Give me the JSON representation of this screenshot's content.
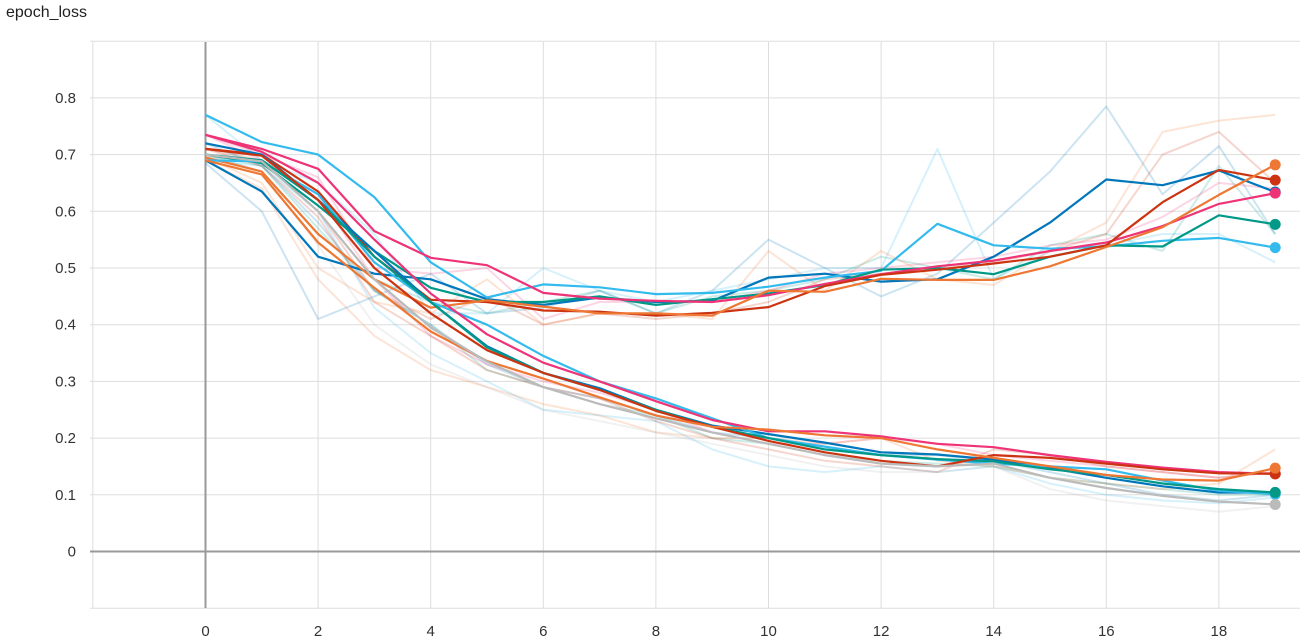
{
  "chart_data": {
    "type": "line",
    "title": "epoch_loss",
    "xlabel": "",
    "ylabel": "",
    "xlim": [
      -2,
      19.5
    ],
    "ylim": [
      -0.1,
      0.9
    ],
    "x_ticks": [
      0,
      2,
      4,
      6,
      8,
      10,
      12,
      14,
      16,
      18
    ],
    "y_ticks": [
      0,
      0.1,
      0.2,
      0.3,
      0.4,
      0.5,
      0.6,
      0.7,
      0.8
    ],
    "grid": true,
    "legend": "none",
    "x": [
      0,
      1,
      2,
      3,
      4,
      5,
      6,
      7,
      8,
      9,
      10,
      11,
      12,
      13,
      14,
      15,
      16,
      17,
      18,
      19
    ],
    "series": [
      {
        "color": "#0077bb",
        "values": [
          0.69,
          0.635,
          0.52,
          0.49,
          0.48,
          0.445,
          0.435,
          0.448,
          0.44,
          0.442,
          0.483,
          0.49,
          0.476,
          0.48,
          0.52,
          0.58,
          0.656,
          0.646,
          0.672,
          0.634
        ],
        "raw": [
          0.685,
          0.6,
          0.41,
          0.45,
          0.49,
          0.42,
          0.43,
          0.46,
          0.42,
          0.46,
          0.55,
          0.5,
          0.45,
          0.49,
          0.58,
          0.67,
          0.785,
          0.63,
          0.715,
          0.56
        ]
      },
      {
        "color": "#33bbee",
        "values": [
          0.77,
          0.722,
          0.7,
          0.625,
          0.51,
          0.448,
          0.471,
          0.466,
          0.454,
          0.456,
          0.467,
          0.483,
          0.495,
          0.578,
          0.54,
          0.534,
          0.538,
          0.548,
          0.553,
          0.536
        ],
        "raw": [
          0.77,
          0.69,
          0.65,
          0.56,
          0.42,
          0.42,
          0.5,
          0.46,
          0.44,
          0.46,
          0.48,
          0.5,
          0.5,
          0.71,
          0.48,
          0.53,
          0.54,
          0.56,
          0.56,
          0.51
        ]
      },
      {
        "color": "#009988",
        "values": [
          0.7,
          0.685,
          0.61,
          0.53,
          0.465,
          0.44,
          0.44,
          0.45,
          0.435,
          0.445,
          0.455,
          0.47,
          0.497,
          0.5,
          0.489,
          0.52,
          0.54,
          0.538,
          0.593,
          0.577
        ],
        "raw": [
          0.7,
          0.67,
          0.56,
          0.48,
          0.44,
          0.42,
          0.44,
          0.46,
          0.42,
          0.45,
          0.46,
          0.48,
          0.52,
          0.5,
          0.48,
          0.54,
          0.56,
          0.53,
          0.68,
          0.56
        ]
      },
      {
        "color": "#ee3377",
        "values": [
          0.735,
          0.71,
          0.675,
          0.565,
          0.518,
          0.505,
          0.456,
          0.446,
          0.442,
          0.44,
          0.452,
          0.472,
          0.489,
          0.503,
          0.513,
          0.53,
          0.545,
          0.574,
          0.613,
          0.632
        ],
        "raw": [
          0.735,
          0.7,
          0.66,
          0.5,
          0.49,
          0.5,
          0.41,
          0.44,
          0.44,
          0.44,
          0.46,
          0.49,
          0.5,
          0.51,
          0.52,
          0.54,
          0.55,
          0.59,
          0.65,
          0.64
        ]
      },
      {
        "color": "#cc3311",
        "values": [
          0.71,
          0.7,
          0.635,
          0.52,
          0.444,
          0.44,
          0.425,
          0.423,
          0.416,
          0.421,
          0.431,
          0.468,
          0.488,
          0.497,
          0.508,
          0.52,
          0.54,
          0.616,
          0.673,
          0.655
        ],
        "raw": [
          0.71,
          0.69,
          0.6,
          0.46,
          0.41,
          0.45,
          0.4,
          0.42,
          0.41,
          0.42,
          0.44,
          0.48,
          0.49,
          0.5,
          0.51,
          0.53,
          0.56,
          0.7,
          0.74,
          0.65
        ]
      },
      {
        "color": "#ee7733",
        "values": [
          0.695,
          0.67,
          0.56,
          0.48,
          0.43,
          0.443,
          0.432,
          0.42,
          0.42,
          0.416,
          0.46,
          0.458,
          0.481,
          0.479,
          0.479,
          0.503,
          0.537,
          0.572,
          0.629,
          0.682
        ],
        "raw": [
          0.695,
          0.65,
          0.5,
          0.44,
          0.42,
          0.48,
          0.4,
          0.42,
          0.42,
          0.41,
          0.53,
          0.46,
          0.53,
          0.48,
          0.47,
          0.53,
          0.58,
          0.74,
          0.76,
          0.77
        ]
      },
      {
        "color": "#0077bb",
        "values": [
          0.72,
          0.7,
          0.62,
          0.53,
          0.44,
          0.362,
          0.315,
          0.288,
          0.25,
          0.222,
          0.207,
          0.192,
          0.175,
          0.171,
          0.162,
          0.147,
          0.13,
          0.115,
          0.104,
          0.104
        ],
        "raw": [
          0.72,
          0.68,
          0.58,
          0.46,
          0.4,
          0.33,
          0.29,
          0.27,
          0.24,
          0.21,
          0.2,
          0.18,
          0.17,
          0.17,
          0.16,
          0.14,
          0.12,
          0.1,
          0.09,
          0.1
        ]
      },
      {
        "color": "#33bbee",
        "values": [
          0.69,
          0.688,
          0.63,
          0.51,
          0.44,
          0.4,
          0.345,
          0.3,
          0.27,
          0.235,
          0.2,
          0.185,
          0.17,
          0.162,
          0.155,
          0.15,
          0.145,
          0.125,
          0.107,
          0.101
        ],
        "raw": [
          0.69,
          0.68,
          0.6,
          0.43,
          0.35,
          0.3,
          0.25,
          0.24,
          0.23,
          0.18,
          0.15,
          0.14,
          0.15,
          0.14,
          0.15,
          0.12,
          0.1,
          0.09,
          0.085,
          0.095
        ]
      },
      {
        "color": "#009988",
        "values": [
          0.7,
          0.69,
          0.62,
          0.52,
          0.44,
          0.36,
          0.315,
          0.285,
          0.25,
          0.22,
          0.2,
          0.18,
          0.17,
          0.163,
          0.159,
          0.145,
          0.135,
          0.12,
          0.11,
          0.104
        ],
        "raw": [
          0.7,
          0.68,
          0.57,
          0.46,
          0.4,
          0.32,
          0.29,
          0.26,
          0.24,
          0.2,
          0.19,
          0.17,
          0.16,
          0.155,
          0.15,
          0.13,
          0.12,
          0.11,
          0.1,
          0.1
        ]
      },
      {
        "color": "#ee3377",
        "values": [
          0.735,
          0.705,
          0.65,
          0.55,
          0.455,
          0.383,
          0.333,
          0.3,
          0.265,
          0.232,
          0.212,
          0.212,
          0.203,
          0.19,
          0.184,
          0.17,
          0.158,
          0.148,
          0.14,
          0.137
        ],
        "raw": [
          0.735,
          0.69,
          0.63,
          0.48,
          0.38,
          0.33,
          0.3,
          0.28,
          0.25,
          0.21,
          0.19,
          0.19,
          0.2,
          0.19,
          0.17,
          0.16,
          0.15,
          0.14,
          0.13,
          0.14
        ]
      },
      {
        "color": "#cc3311",
        "values": [
          0.71,
          0.698,
          0.62,
          0.5,
          0.42,
          0.355,
          0.315,
          0.285,
          0.248,
          0.22,
          0.195,
          0.175,
          0.16,
          0.15,
          0.17,
          0.165,
          0.155,
          0.145,
          0.138,
          0.137
        ],
        "raw": [
          0.71,
          0.68,
          0.59,
          0.44,
          0.38,
          0.32,
          0.29,
          0.27,
          0.23,
          0.2,
          0.18,
          0.16,
          0.15,
          0.14,
          0.18,
          0.17,
          0.15,
          0.14,
          0.13,
          0.14
        ]
      },
      {
        "color": "#ee7733",
        "values": [
          0.69,
          0.665,
          0.545,
          0.465,
          0.388,
          0.336,
          0.305,
          0.272,
          0.24,
          0.22,
          0.215,
          0.205,
          0.2,
          0.18,
          0.165,
          0.15,
          0.135,
          0.127,
          0.125,
          0.147
        ],
        "raw": [
          0.69,
          0.64,
          0.48,
          0.38,
          0.32,
          0.29,
          0.26,
          0.24,
          0.21,
          0.2,
          0.2,
          0.19,
          0.2,
          0.16,
          0.15,
          0.13,
          0.12,
          0.11,
          0.12,
          0.18
        ]
      },
      {
        "color": "#bbbbbb",
        "values": [
          0.7,
          0.688,
          0.6,
          0.48,
          0.395,
          0.335,
          0.29,
          0.26,
          0.235,
          0.21,
          0.19,
          0.17,
          0.155,
          0.15,
          0.155,
          0.13,
          0.112,
          0.098,
          0.088,
          0.083
        ],
        "raw": [
          0.7,
          0.67,
          0.54,
          0.4,
          0.33,
          0.29,
          0.25,
          0.23,
          0.21,
          0.19,
          0.17,
          0.15,
          0.14,
          0.14,
          0.15,
          0.11,
          0.09,
          0.08,
          0.07,
          0.08
        ]
      }
    ]
  }
}
